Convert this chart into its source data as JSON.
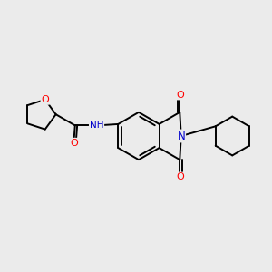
{
  "background_color": "#ebebeb",
  "atom_color_N": "#0000cc",
  "atom_color_O": "#ff0000",
  "bond_color": "#000000",
  "bond_width": 1.4,
  "figsize": [
    3.0,
    3.0
  ],
  "dpi": 100,
  "xlim": [
    0,
    10
  ],
  "ylim": [
    0,
    10
  ]
}
